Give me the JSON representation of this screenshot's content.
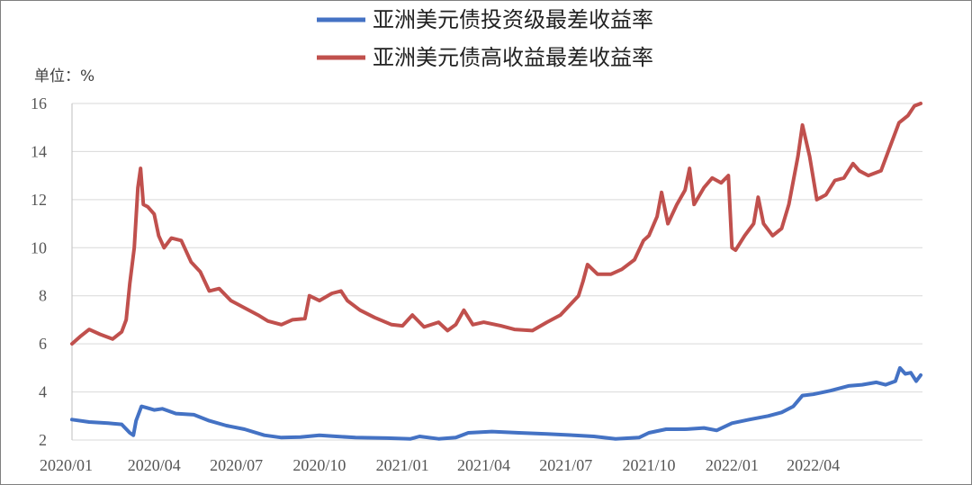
{
  "chart_data": {
    "type": "line",
    "unit_label": "单位：%",
    "legend_position": "top-center",
    "grid": true,
    "ylim": [
      2,
      16
    ],
    "y_ticks": [
      "2",
      "4",
      "6",
      "8",
      "10",
      "12",
      "14",
      "16"
    ],
    "x_range": [
      "2020-01-01",
      "2022-07-31"
    ],
    "x_ticks": [
      {
        "label": "2020/01",
        "date": "2020-01-01"
      },
      {
        "label": "2020/04",
        "date": "2020-04-01"
      },
      {
        "label": "2020/07",
        "date": "2020-07-01"
      },
      {
        "label": "2020/10",
        "date": "2020-10-01"
      },
      {
        "label": "2021/01",
        "date": "2021-01-01"
      },
      {
        "label": "2021/04",
        "date": "2021-04-01"
      },
      {
        "label": "2021/07",
        "date": "2021-07-01"
      },
      {
        "label": "2021/10",
        "date": "2021-10-01"
      },
      {
        "label": "2022/01",
        "date": "2022-01-01"
      },
      {
        "label": "2022/04",
        "date": "2022-04-01"
      }
    ],
    "series": [
      {
        "name": "亚洲美元债投资级最差收益率",
        "color": "#4472c4",
        "points": [
          [
            "2020-01-01",
            2.85
          ],
          [
            "2020-01-20",
            2.75
          ],
          [
            "2020-02-10",
            2.7
          ],
          [
            "2020-02-25",
            2.65
          ],
          [
            "2020-03-05",
            2.3
          ],
          [
            "2020-03-09",
            2.2
          ],
          [
            "2020-03-12",
            2.8
          ],
          [
            "2020-03-18",
            3.4
          ],
          [
            "2020-03-23",
            3.35
          ],
          [
            "2020-04-01",
            3.25
          ],
          [
            "2020-04-10",
            3.3
          ],
          [
            "2020-04-25",
            3.1
          ],
          [
            "2020-05-15",
            3.05
          ],
          [
            "2020-06-01",
            2.8
          ],
          [
            "2020-06-20",
            2.6
          ],
          [
            "2020-07-10",
            2.45
          ],
          [
            "2020-08-01",
            2.2
          ],
          [
            "2020-08-20",
            2.1
          ],
          [
            "2020-09-10",
            2.12
          ],
          [
            "2020-10-01",
            2.2
          ],
          [
            "2020-10-20",
            2.15
          ],
          [
            "2020-11-10",
            2.1
          ],
          [
            "2020-12-15",
            2.08
          ],
          [
            "2021-01-10",
            2.05
          ],
          [
            "2021-01-20",
            2.15
          ],
          [
            "2021-02-10",
            2.05
          ],
          [
            "2021-03-01",
            2.1
          ],
          [
            "2021-03-15",
            2.3
          ],
          [
            "2021-04-10",
            2.35
          ],
          [
            "2021-05-10",
            2.3
          ],
          [
            "2021-06-10",
            2.25
          ],
          [
            "2021-07-10",
            2.2
          ],
          [
            "2021-08-01",
            2.15
          ],
          [
            "2021-08-25",
            2.05
          ],
          [
            "2021-09-20",
            2.1
          ],
          [
            "2021-10-01",
            2.3
          ],
          [
            "2021-10-20",
            2.45
          ],
          [
            "2021-11-10",
            2.45
          ],
          [
            "2021-12-01",
            2.5
          ],
          [
            "2021-12-15",
            2.4
          ],
          [
            "2022-01-01",
            2.7
          ],
          [
            "2022-01-20",
            2.85
          ],
          [
            "2022-02-10",
            3.0
          ],
          [
            "2022-02-25",
            3.15
          ],
          [
            "2022-03-10",
            3.4
          ],
          [
            "2022-03-20",
            3.85
          ],
          [
            "2022-04-01",
            3.9
          ],
          [
            "2022-04-20",
            4.05
          ],
          [
            "2022-05-10",
            4.25
          ],
          [
            "2022-05-25",
            4.3
          ],
          [
            "2022-06-10",
            4.4
          ],
          [
            "2022-06-20",
            4.3
          ],
          [
            "2022-07-01",
            4.45
          ],
          [
            "2022-07-06",
            5.0
          ],
          [
            "2022-07-12",
            4.75
          ],
          [
            "2022-07-18",
            4.8
          ],
          [
            "2022-07-24",
            4.45
          ],
          [
            "2022-07-29",
            4.7
          ]
        ]
      },
      {
        "name": "亚洲美元债高收益最差收益率",
        "color": "#c0504d",
        "points": [
          [
            "2020-01-01",
            6.0
          ],
          [
            "2020-01-10",
            6.3
          ],
          [
            "2020-01-20",
            6.6
          ],
          [
            "2020-02-01",
            6.4
          ],
          [
            "2020-02-15",
            6.2
          ],
          [
            "2020-02-25",
            6.5
          ],
          [
            "2020-03-01",
            7.0
          ],
          [
            "2020-03-05",
            8.5
          ],
          [
            "2020-03-10",
            10.0
          ],
          [
            "2020-03-14",
            12.5
          ],
          [
            "2020-03-17",
            13.3
          ],
          [
            "2020-03-20",
            11.8
          ],
          [
            "2020-03-25",
            11.7
          ],
          [
            "2020-04-01",
            11.4
          ],
          [
            "2020-04-06",
            10.5
          ],
          [
            "2020-04-12",
            10.0
          ],
          [
            "2020-04-20",
            10.4
          ],
          [
            "2020-05-01",
            10.3
          ],
          [
            "2020-05-12",
            9.4
          ],
          [
            "2020-05-22",
            9.0
          ],
          [
            "2020-06-01",
            8.2
          ],
          [
            "2020-06-12",
            8.3
          ],
          [
            "2020-06-25",
            7.8
          ],
          [
            "2020-07-10",
            7.5
          ],
          [
            "2020-07-25",
            7.2
          ],
          [
            "2020-08-05",
            6.95
          ],
          [
            "2020-08-20",
            6.8
          ],
          [
            "2020-09-01",
            7.0
          ],
          [
            "2020-09-15",
            7.05
          ],
          [
            "2020-09-20",
            8.0
          ],
          [
            "2020-10-01",
            7.8
          ],
          [
            "2020-10-15",
            8.1
          ],
          [
            "2020-10-25",
            8.2
          ],
          [
            "2020-11-01",
            7.8
          ],
          [
            "2020-11-15",
            7.4
          ],
          [
            "2020-12-01",
            7.1
          ],
          [
            "2020-12-20",
            6.8
          ],
          [
            "2021-01-01",
            6.75
          ],
          [
            "2021-01-12",
            7.2
          ],
          [
            "2021-01-25",
            6.7
          ],
          [
            "2021-02-10",
            6.9
          ],
          [
            "2021-02-20",
            6.55
          ],
          [
            "2021-03-01",
            6.8
          ],
          [
            "2021-03-10",
            7.4
          ],
          [
            "2021-03-20",
            6.8
          ],
          [
            "2021-04-01",
            6.9
          ],
          [
            "2021-04-20",
            6.75
          ],
          [
            "2021-05-05",
            6.6
          ],
          [
            "2021-05-25",
            6.55
          ],
          [
            "2021-06-10",
            6.9
          ],
          [
            "2021-06-25",
            7.2
          ],
          [
            "2021-07-05",
            7.6
          ],
          [
            "2021-07-15",
            8.0
          ],
          [
            "2021-07-20",
            8.6
          ],
          [
            "2021-07-25",
            9.3
          ],
          [
            "2021-08-05",
            8.9
          ],
          [
            "2021-08-20",
            8.9
          ],
          [
            "2021-09-01",
            9.1
          ],
          [
            "2021-09-15",
            9.5
          ],
          [
            "2021-09-25",
            10.3
          ],
          [
            "2021-10-01",
            10.5
          ],
          [
            "2021-10-10",
            11.3
          ],
          [
            "2021-10-15",
            12.3
          ],
          [
            "2021-10-22",
            11.0
          ],
          [
            "2021-11-01",
            11.8
          ],
          [
            "2021-11-10",
            12.4
          ],
          [
            "2021-11-15",
            13.3
          ],
          [
            "2021-11-20",
            11.8
          ],
          [
            "2021-12-01",
            12.5
          ],
          [
            "2021-12-10",
            12.9
          ],
          [
            "2021-12-20",
            12.7
          ],
          [
            "2021-12-28",
            13.0
          ],
          [
            "2022-01-01",
            10.0
          ],
          [
            "2022-01-05",
            9.9
          ],
          [
            "2022-01-15",
            10.5
          ],
          [
            "2022-01-25",
            11.0
          ],
          [
            "2022-01-30",
            12.1
          ],
          [
            "2022-02-05",
            11.0
          ],
          [
            "2022-02-15",
            10.5
          ],
          [
            "2022-02-25",
            10.8
          ],
          [
            "2022-03-05",
            11.8
          ],
          [
            "2022-03-15",
            13.8
          ],
          [
            "2022-03-20",
            15.1
          ],
          [
            "2022-03-28",
            13.8
          ],
          [
            "2022-04-05",
            12.0
          ],
          [
            "2022-04-15",
            12.2
          ],
          [
            "2022-04-25",
            12.8
          ],
          [
            "2022-05-05",
            12.9
          ],
          [
            "2022-05-15",
            13.5
          ],
          [
            "2022-05-22",
            13.2
          ],
          [
            "2022-06-01",
            13.0
          ],
          [
            "2022-06-15",
            13.2
          ],
          [
            "2022-06-25",
            14.2
          ],
          [
            "2022-07-05",
            15.2
          ],
          [
            "2022-07-15",
            15.5
          ],
          [
            "2022-07-22",
            15.9
          ],
          [
            "2022-07-29",
            16.0
          ]
        ]
      }
    ]
  }
}
